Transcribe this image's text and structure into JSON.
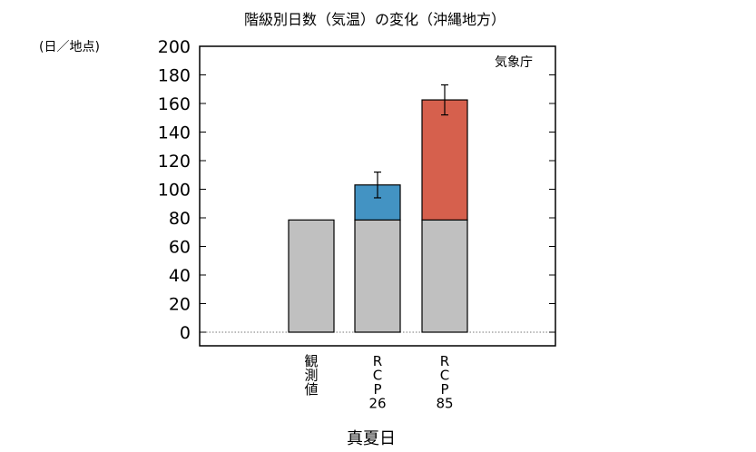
{
  "chart_data": {
    "type": "bar",
    "stacked": true,
    "title": "階級別日数（気温）の変化（沖縄地方）",
    "ylabel": "(日／地点)",
    "xlabel": "真夏日",
    "source": "気象庁",
    "ylim": [
      0,
      200
    ],
    "yticks": [
      0,
      20,
      40,
      60,
      80,
      100,
      120,
      140,
      160,
      180,
      200
    ],
    "grid": false,
    "zero_line": "dotted",
    "categories": [
      [
        "観",
        "測",
        "値"
      ],
      [
        "R",
        "C",
        "P",
        "26"
      ],
      [
        "R",
        "C",
        "P",
        "85"
      ]
    ],
    "series": [
      {
        "values": [
          78.5,
          78.5,
          78.5
        ],
        "color": "#c0c0c0"
      },
      {
        "values": [
          0,
          24.5,
          84
        ],
        "colors": [
          "#c0c0c0",
          "#4393c3",
          "#d6604d"
        ]
      }
    ],
    "error_bars": [
      null,
      {
        "center": 103,
        "low": 94,
        "high": 112
      },
      {
        "center": 162.5,
        "low": 152,
        "high": 173
      }
    ]
  }
}
